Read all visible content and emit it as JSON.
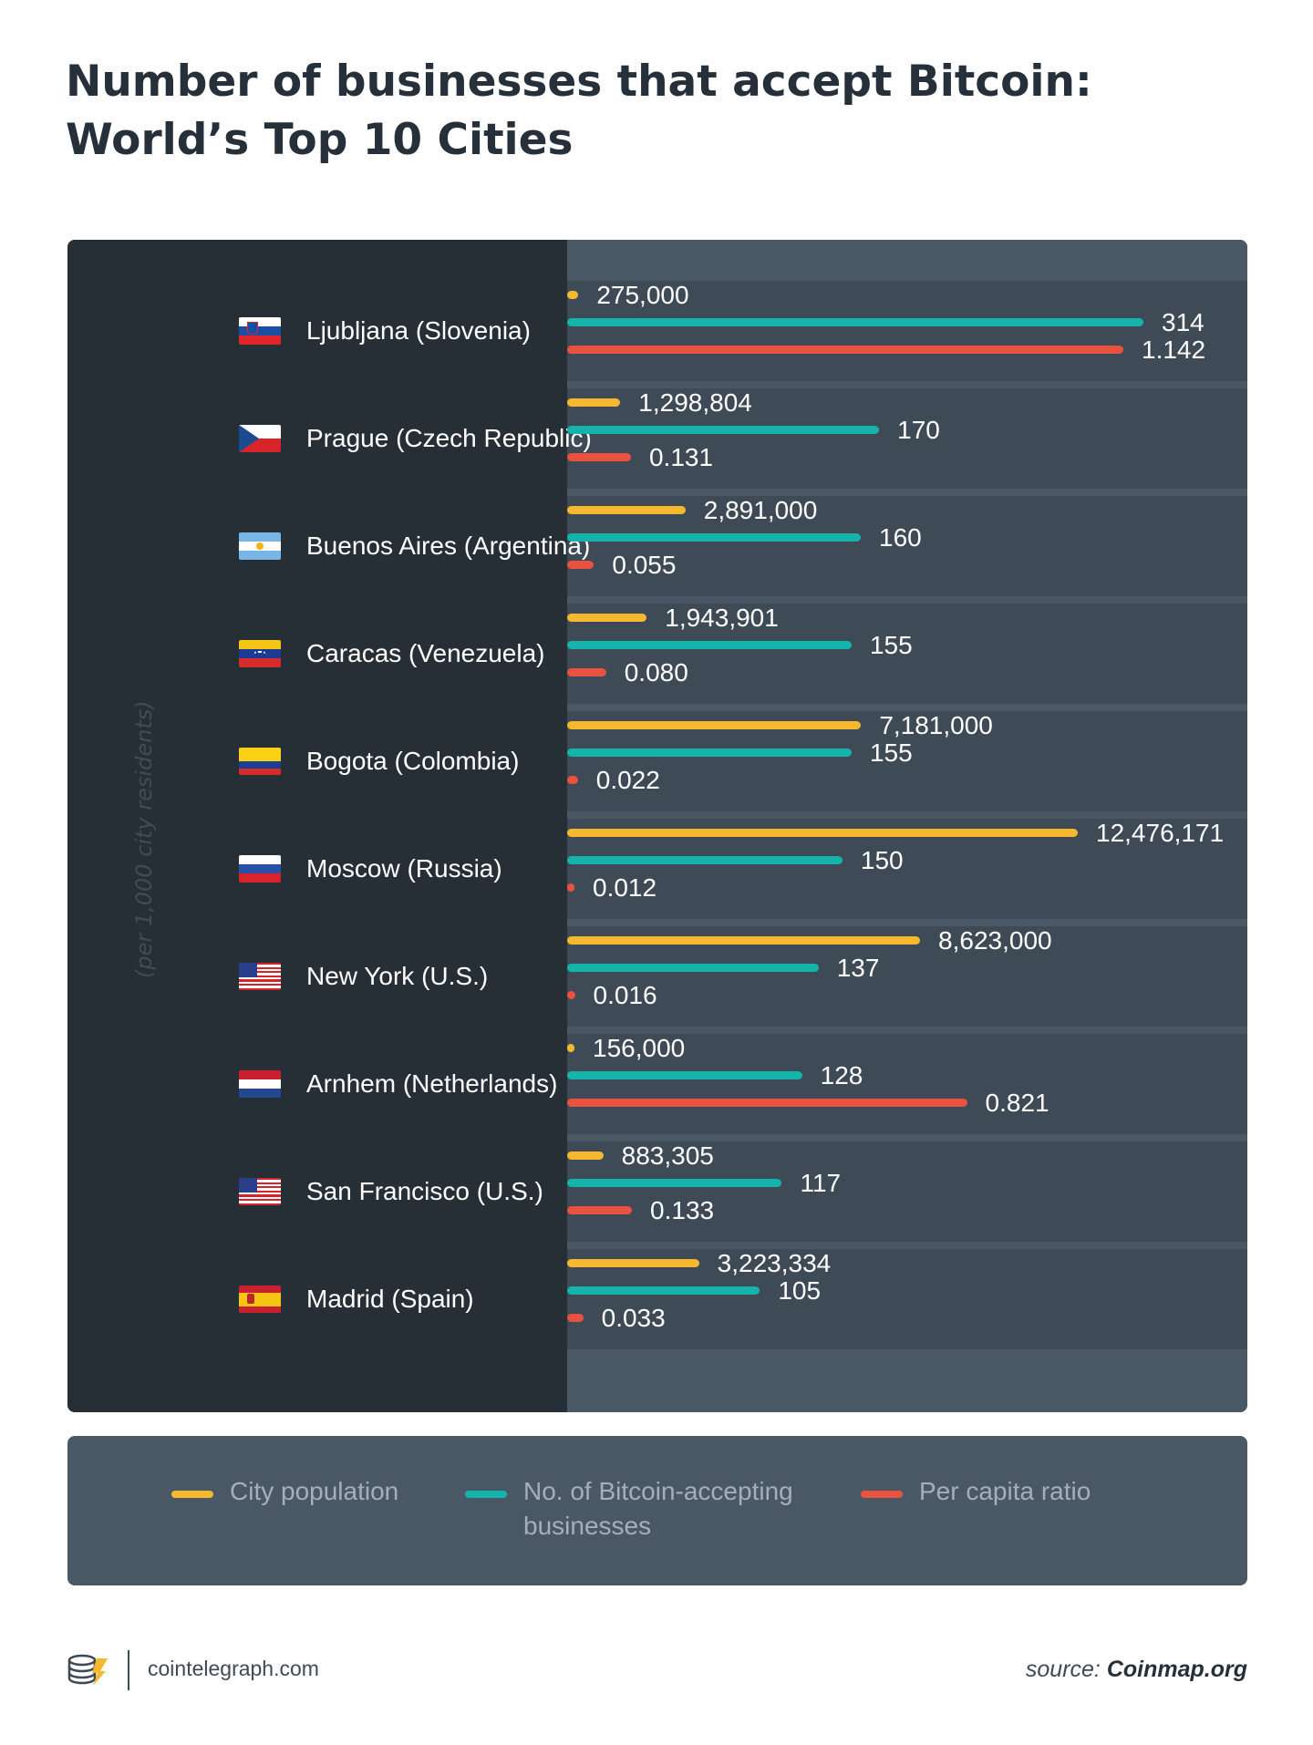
{
  "title_line1": "Number of businesses that accept Bitcoin:",
  "title_line2": "World’s Top 10 Cities",
  "y_axis_note": "(per 1,000 city residents)",
  "colors": {
    "population": "#f5b82e",
    "businesses": "#14b3ab",
    "ratio": "#e8523f"
  },
  "chart_data": {
    "type": "bar",
    "orientation": "horizontal",
    "title": "Number of businesses that accept Bitcoin: World’s Top 10 Cities",
    "categories": [
      "Ljubljana (Slovenia)",
      "Prague (Czech Republic)",
      "Buenos Aires (Argentina)",
      "Caracas (Venezuela)",
      "Bogota (Colombia)",
      "Moscow (Russia)",
      "New York (U.S.)",
      "Arnhem (Netherlands)",
      "San Francisco (U.S.)",
      "Madrid (Spain)"
    ],
    "flags": [
      "slovenia",
      "czech",
      "argentina",
      "venezuela",
      "colombia",
      "russia",
      "usa",
      "netherlands",
      "usa",
      "spain"
    ],
    "series": [
      {
        "name": "City population",
        "key": "population",
        "values": [
          275000,
          1298804,
          2891000,
          1943901,
          7181000,
          12476171,
          8623000,
          156000,
          883305,
          3223334
        ],
        "labels": [
          "275,000",
          "1,298,804",
          "2,891,000",
          "1,943,901",
          "7,181,000",
          "12,476,171",
          "8,623,000",
          "156,000",
          "883,305",
          "3,223,334"
        ]
      },
      {
        "name": "No. of Bitcoin-accepting businesses",
        "key": "businesses",
        "values": [
          314,
          170,
          160,
          155,
          155,
          150,
          137,
          128,
          117,
          105
        ],
        "labels": [
          "314",
          "170",
          "160",
          "155",
          "155",
          "150",
          "137",
          "128",
          "117",
          "105"
        ]
      },
      {
        "name": "Per capita ratio",
        "key": "ratio",
        "values": [
          1.142,
          0.131,
          0.055,
          0.08,
          0.022,
          0.012,
          0.016,
          0.821,
          0.133,
          0.033
        ],
        "labels": [
          "1.142",
          "0.131",
          "0.055",
          "0.080",
          "0.022",
          "0.012",
          "0.016",
          "0.821",
          "0.133",
          "0.033"
        ]
      }
    ]
  },
  "legend": {
    "population": "City population",
    "businesses_line1": "No. of Bitcoin-accepting",
    "businesses_line2": "businesses",
    "ratio": "Per capita ratio"
  },
  "footer": {
    "site": "cointelegraph.com",
    "source_prefix": "source: ",
    "source_name": "Coinmap.org"
  }
}
